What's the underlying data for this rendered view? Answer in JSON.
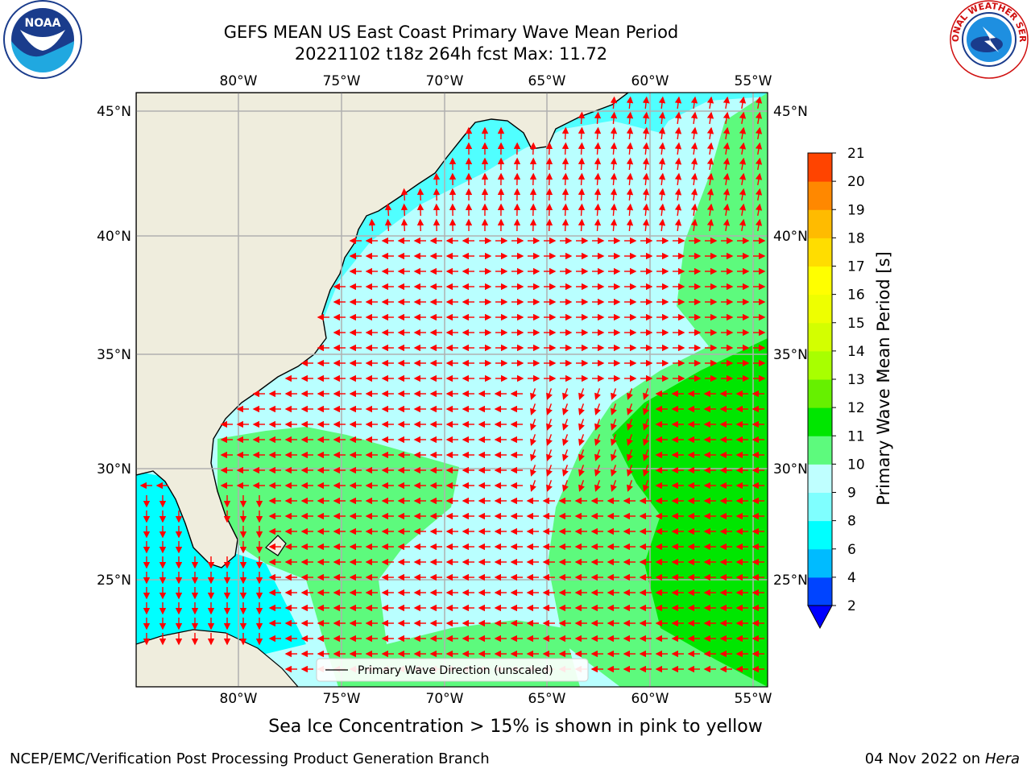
{
  "title_line1": "GEFS MEAN US East Coast Primary Wave Mean Period",
  "title_line2": "20221102 t18z 264h fcst   Max: 11.72",
  "lon_ticks": [
    "80°W",
    "75°W",
    "70°W",
    "65°W",
    "60°W",
    "55°W"
  ],
  "lat_ticks": [
    "45°N",
    "40°N",
    "35°N",
    "30°N",
    "25°N"
  ],
  "legend_label": "Primary Wave Direction (unscaled)",
  "colorbar": {
    "label": "Primary Wave Mean Period [s]",
    "ticks": [
      "2",
      "4",
      "6",
      "8",
      "9",
      "10",
      "11",
      "12",
      "13",
      "14",
      "15",
      "16",
      "17",
      "18",
      "19",
      "20",
      "21"
    ],
    "colors": [
      "#0044ff",
      "#00bbff",
      "#00ffff",
      "#7fffff",
      "#bfffff",
      "#5dfa7d",
      "#00e600",
      "#66f000",
      "#a8ff00",
      "#d3ff00",
      "#eeff00",
      "#ffff00",
      "#ffdd00",
      "#ffbb00",
      "#ff8800",
      "#ff4400",
      "#ff1100"
    ]
  },
  "caption": "Sea Ice Concentration > 15% is shown in pink to yellow",
  "footer_left": "NCEP/EMC/Verification Post Processing Product Generation Branch",
  "footer_date": "04 Nov 2022 on",
  "footer_machine": "Hera",
  "logos": {
    "noaa_text": "NOAA",
    "nws_text": "NATIONAL WEATHER SERVICE"
  },
  "colors": {
    "land": "#efeddd",
    "arrow": "#ff0000",
    "grid": "#b0b0b0"
  }
}
